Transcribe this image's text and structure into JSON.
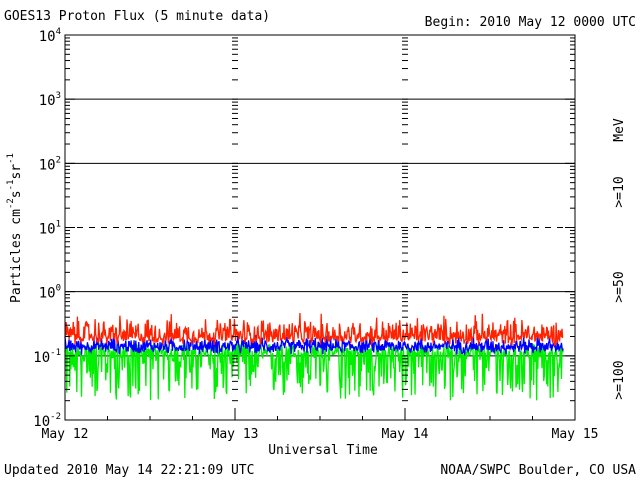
{
  "header": {
    "title": "GOES13 Proton Flux (5 minute data)",
    "begin": "Begin: 2010 May 12 0000 UTC"
  },
  "footer": {
    "updated": "Updated 2010 May 14 22:21:09 UTC",
    "credit": "NOAA/SWPC Boulder, CO USA"
  },
  "chart_data": {
    "type": "line",
    "title": "GOES13 Proton Flux (5 minute data)",
    "xlabel": "Universal Time",
    "ylabel_base": "Particles cm",
    "ylabel_parts": [
      "-2",
      "s",
      "-1",
      "sr",
      "-1"
    ],
    "ylabel": "Particles cm-2s-1sr-1",
    "yscale": "log",
    "ylim": [
      0.01,
      10000
    ],
    "y_ticks": [
      {
        "base": "10",
        "exp": "4"
      },
      {
        "base": "10",
        "exp": "3"
      },
      {
        "base": "10",
        "exp": "2"
      },
      {
        "base": "10",
        "exp": "1"
      },
      {
        "base": "10",
        "exp": "0"
      },
      {
        "base": "10",
        "exp": "-1"
      },
      {
        "base": "10",
        "exp": "-2"
      }
    ],
    "x_ticks": [
      "May 12",
      "May 13",
      "May 14",
      "May 15"
    ],
    "xlim": [
      "2010-05-12 00:00",
      "2010-05-15 00:00"
    ],
    "data_end": "2010-05-14 22:20",
    "unit_label": "MeV",
    "reference_lines": [
      {
        "y": 1000,
        "style": "solid"
      },
      {
        "y": 100,
        "style": "solid"
      },
      {
        "y": 10,
        "style": "dashed"
      },
      {
        "y": 1,
        "style": "solid"
      },
      {
        "y": 0.1,
        "style": "solid"
      }
    ],
    "series": [
      {
        "name": ">=10",
        "color": "#ff2200",
        "typical": 0.2,
        "min": 0.14,
        "max": 0.5
      },
      {
        "name": ">=50",
        "color": "#0000ff",
        "typical": 0.14,
        "min": 0.1,
        "max": 0.22
      },
      {
        "name": ">=100",
        "color": "#00ee00",
        "typical": 0.1,
        "min": 0.02,
        "max": 0.16
      }
    ]
  }
}
